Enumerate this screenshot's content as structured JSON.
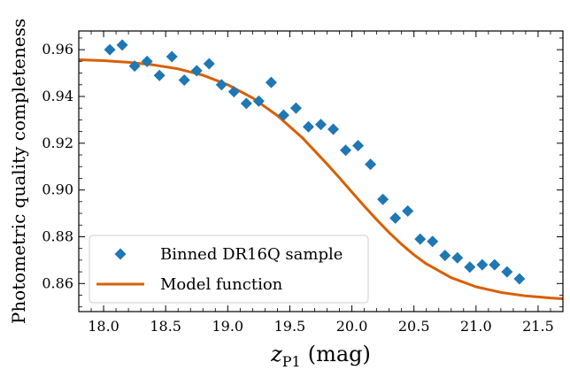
{
  "chart_data": {
    "type": "scatter",
    "xlabel_main": "z",
    "xlabel_sub": "P1",
    "xlabel_unit": "(mag)",
    "ylabel": "Photometric quality completeness",
    "xlim": [
      17.8,
      21.7
    ],
    "ylim": [
      0.848,
      0.968
    ],
    "xticks": [
      "18.0",
      "18.5",
      "19.0",
      "19.5",
      "20.0",
      "20.5",
      "21.0",
      "21.5"
    ],
    "yticks": [
      "0.86",
      "0.88",
      "0.90",
      "0.92",
      "0.94",
      "0.96"
    ],
    "grid": false,
    "legend_position": "bottom-left",
    "series": [
      {
        "name": "Binned DR16Q sample",
        "kind": "scatter",
        "marker": "diamond",
        "color": "#1f77b4",
        "x": [
          18.05,
          18.15,
          18.25,
          18.35,
          18.45,
          18.55,
          18.65,
          18.75,
          18.85,
          18.95,
          19.05,
          19.15,
          19.25,
          19.35,
          19.45,
          19.55,
          19.65,
          19.75,
          19.85,
          19.95,
          20.05,
          20.15,
          20.25,
          20.35,
          20.45,
          20.55,
          20.65,
          20.75,
          20.85,
          20.95,
          21.05,
          21.15,
          21.25,
          21.35
        ],
        "y": [
          0.96,
          0.962,
          0.953,
          0.955,
          0.949,
          0.957,
          0.947,
          0.951,
          0.954,
          0.945,
          0.942,
          0.937,
          0.938,
          0.946,
          0.932,
          0.935,
          0.927,
          0.928,
          0.926,
          0.917,
          0.919,
          0.911,
          0.896,
          0.888,
          0.891,
          0.879,
          0.878,
          0.872,
          0.871,
          0.867,
          0.868,
          0.868,
          0.865,
          0.862
        ]
      },
      {
        "name": "Model function",
        "kind": "line",
        "color": "#d95f02",
        "x": [
          17.8,
          18.0,
          18.2,
          18.4,
          18.6,
          18.8,
          19.0,
          19.2,
          19.4,
          19.6,
          19.8,
          19.9,
          20.0,
          20.1,
          20.2,
          20.3,
          20.4,
          20.5,
          20.6,
          20.8,
          21.0,
          21.2,
          21.4,
          21.6,
          21.7
        ],
        "y": [
          0.9557,
          0.9553,
          0.9546,
          0.9535,
          0.9518,
          0.9491,
          0.945,
          0.9394,
          0.9318,
          0.9224,
          0.9111,
          0.9052,
          0.8991,
          0.8931,
          0.8873,
          0.8818,
          0.8768,
          0.8723,
          0.8684,
          0.8625,
          0.8586,
          0.8562,
          0.8547,
          0.8538,
          0.8535
        ]
      }
    ]
  }
}
